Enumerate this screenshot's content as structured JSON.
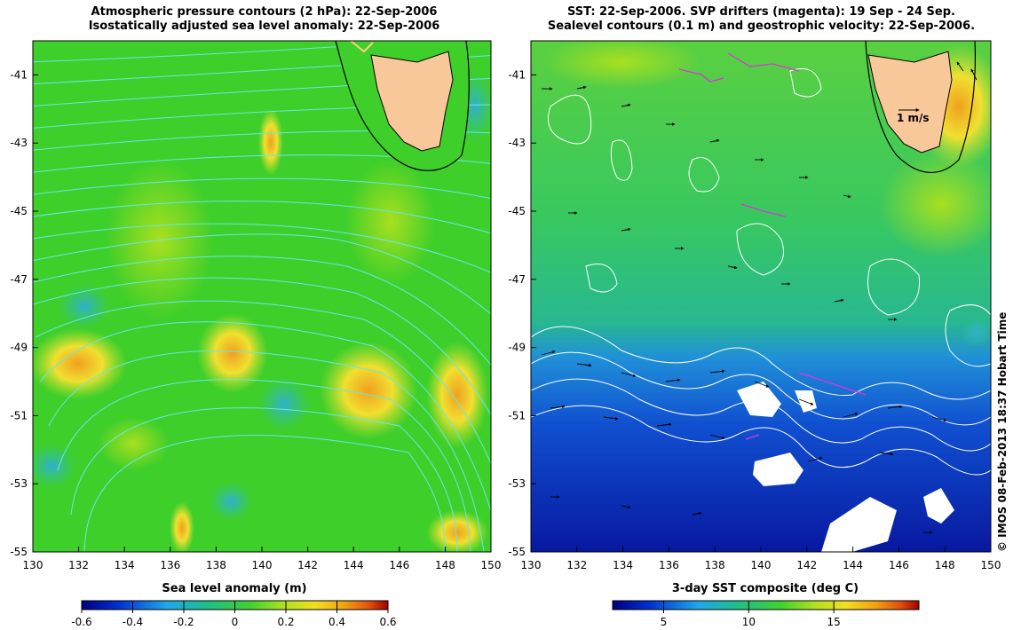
{
  "left_panel": {
    "title_line1": "Atmospheric pressure contours (2 hPa): 22-Sep-2006",
    "title_line2": "Isostatically adjusted sea level anomaly: 22-Sep-2006",
    "colorbar": {
      "label": "Sea level anomaly (m)",
      "range": [
        -0.6,
        0.6
      ],
      "ticks": [
        "-0.6",
        "-0.4",
        "-0.2",
        "0",
        "0.2",
        "0.4",
        "0.6"
      ]
    }
  },
  "right_panel": {
    "title_line1": "SST: 22-Sep-2006. SVP drifters (magenta): 19 Sep - 24 Sep.",
    "title_line2": "Sealevel contours (0.1 m) and geostrophic velocity: 22-Sep-2006.",
    "scale_arrow_label": "1 m/s",
    "colorbar": {
      "label": "3-day SST composite (deg C)",
      "range": [
        2,
        20
      ],
      "ticks": [
        "5",
        "10",
        "15"
      ]
    }
  },
  "axes": {
    "lon_range": [
      130,
      150
    ],
    "lat_range": [
      -55,
      -40
    ],
    "x_ticks": [
      "130",
      "132",
      "134",
      "136",
      "138",
      "140",
      "142",
      "144",
      "146",
      "148",
      "150"
    ],
    "y_ticks": [
      "-41",
      "-43",
      "-45",
      "-47",
      "-49",
      "-51",
      "-53",
      "-55"
    ]
  },
  "copyright": "© IMOS 08-Feb-2013 18:37 Hobart Time",
  "colors": {
    "land": "#f9c89a",
    "left_background": "#3fcf2a",
    "pressure_contour": "#66e8e8",
    "sealevel_contour": "#ffffff",
    "drifter": "#dd33dd",
    "sst_cold": "#1133bb",
    "sst_warm": "#33c85a"
  }
}
